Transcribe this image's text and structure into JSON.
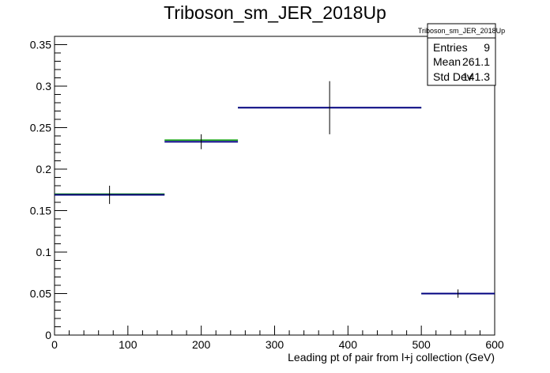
{
  "chart_data": {
    "type": "histogram",
    "title": "Triboson_sm_JER_2018Up",
    "xlabel": "Leading pt of pair from l+j collection (GeV)",
    "ylabel": "",
    "xlim": [
      0,
      600
    ],
    "ylim": [
      0,
      0.36
    ],
    "xticks": [
      "0",
      "100",
      "200",
      "300",
      "400",
      "500",
      "600"
    ],
    "yticks": [
      "0",
      "0.05",
      "0.1",
      "0.15",
      "0.2",
      "0.25",
      "0.3",
      "0.35"
    ],
    "xtick_values": [
      0,
      100,
      200,
      300,
      400,
      500,
      600
    ],
    "ytick_values": [
      0,
      0.05,
      0.1,
      0.15,
      0.2,
      0.25,
      0.3,
      0.35
    ],
    "bins": [
      {
        "x_low": 0,
        "x_high": 150,
        "center": 75,
        "value": 0.169,
        "error": 0.011
      },
      {
        "x_low": 150,
        "x_high": 250,
        "center": 200,
        "value": 0.233,
        "error": 0.009
      },
      {
        "x_low": 250,
        "x_high": 500,
        "center": 375,
        "value": 0.274,
        "error": 0.032
      },
      {
        "x_low": 500,
        "x_high": 600,
        "center": 550,
        "value": 0.05,
        "error": 0.005
      }
    ],
    "overlay_bins": [
      {
        "x_low": 0,
        "x_high": 150,
        "value": 0.17
      },
      {
        "x_low": 150,
        "x_high": 250,
        "value": 0.235
      },
      {
        "x_low": 250,
        "x_high": 500,
        "value": 0.274
      },
      {
        "x_low": 500,
        "x_high": 600,
        "value": 0.05
      }
    ],
    "colors": {
      "main": "#00007f",
      "overlay": "#009900",
      "error": "#000000"
    },
    "stats_box": {
      "title": "Triboson_sm_JER_2018Up",
      "rows": [
        {
          "label": "Entries",
          "value": "9"
        },
        {
          "label": "Mean",
          "value": "261.1"
        },
        {
          "label": "Std Dev",
          "value": "141.3"
        }
      ]
    }
  }
}
